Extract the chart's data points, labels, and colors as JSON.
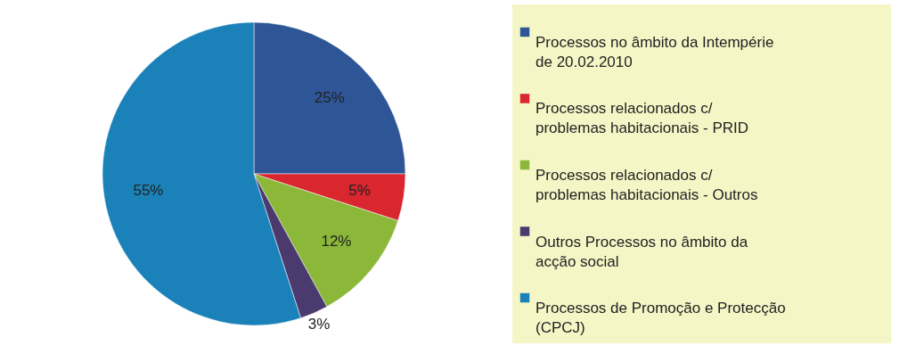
{
  "chart_data": {
    "type": "pie",
    "categories": [
      "Processos no âmbito da Intempérie de 20.02.2010",
      "Processos relacionados c/ problemas habitacionais - PRID",
      "Processos relacionados c/ problemas habitacionais - Outros",
      "Outros Processos no âmbito da acção social",
      "Processos de Promoção e Protecção (CPCJ)"
    ],
    "values": [
      25,
      5,
      12,
      3,
      55
    ],
    "colors": [
      "#2e5596",
      "#d9262f",
      "#8cb83a",
      "#4a3a6e",
      "#1a82b8"
    ],
    "value_labels": [
      "25%",
      "5%",
      "12%",
      "3%",
      "55%"
    ],
    "legend": "right"
  }
}
